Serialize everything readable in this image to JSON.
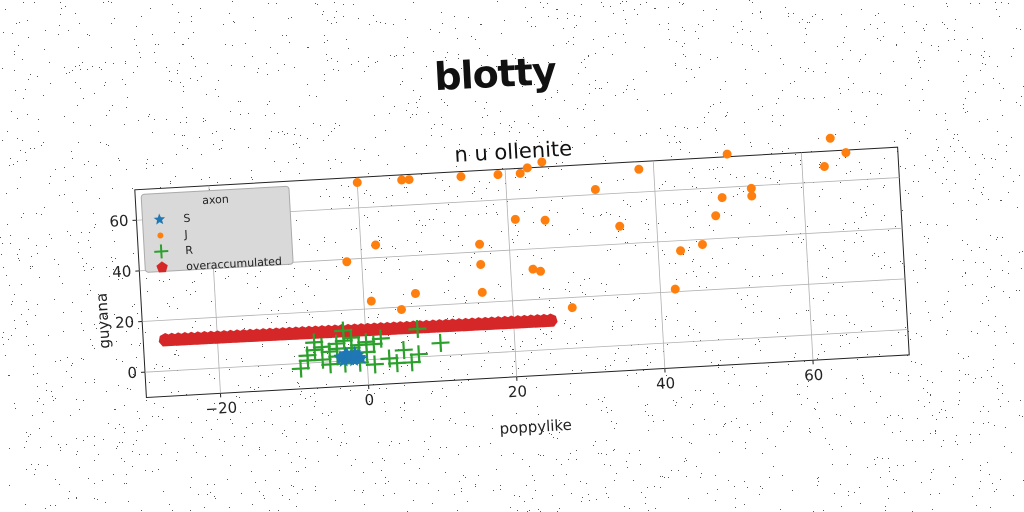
{
  "suptitle": "blotty",
  "chart_data": {
    "type": "scatter",
    "title": "n u ollenite",
    "xlabel": "poppylike",
    "ylabel": "guyana",
    "xlim": [
      -30,
      73
    ],
    "ylim": [
      -10,
      72
    ],
    "xticks": [
      -20,
      0,
      20,
      40,
      60
    ],
    "yticks": [
      0,
      20,
      40,
      60
    ],
    "grid": true,
    "legend": {
      "title": "axon",
      "placement": "top-left"
    },
    "colors": {
      "S": "#1f77b4",
      "J": "#ff7f0e",
      "R": "#2ca02c",
      "overaccumulated": "#d62728"
    },
    "series": [
      {
        "name": "S",
        "marker": "star",
        "points": [
          [
            -3.5,
            1
          ],
          [
            -3,
            2
          ],
          [
            -2.5,
            0.5
          ],
          [
            -2,
            1.5
          ],
          [
            -1.5,
            2.5
          ],
          [
            -1,
            1
          ],
          [
            -2.8,
            3
          ],
          [
            -1.8,
            0
          ],
          [
            -3.2,
            0
          ],
          [
            -1.2,
            2
          ],
          [
            -2.2,
            1.8
          ],
          [
            -0.8,
            0.5
          ],
          [
            -2.6,
            2.4
          ],
          [
            -1.6,
            3
          ],
          [
            -3.6,
            1.8
          ]
        ]
      },
      {
        "name": "J",
        "marker": "circle",
        "points": [
          [
            0,
            70
          ],
          [
            6,
            70
          ],
          [
            7,
            70
          ],
          [
            14,
            70
          ],
          [
            19,
            70
          ],
          [
            22,
            70
          ],
          [
            23,
            72
          ],
          [
            25,
            74
          ],
          [
            32,
            62
          ],
          [
            35,
            47
          ],
          [
            38,
            69
          ],
          [
            42,
            21
          ],
          [
            43,
            36
          ],
          [
            46,
            38
          ],
          [
            48,
            49
          ],
          [
            49,
            56
          ],
          [
            50,
            73
          ],
          [
            53,
            59
          ],
          [
            53,
            56
          ],
          [
            63,
            66
          ],
          [
            64,
            77
          ],
          [
            66,
            71
          ],
          [
            21,
            52
          ],
          [
            25,
            51
          ],
          [
            16,
            43
          ],
          [
            16,
            35
          ],
          [
            16,
            24
          ],
          [
            23,
            32
          ],
          [
            24,
            31
          ],
          [
            2,
            45
          ],
          [
            -2,
            39
          ],
          [
            1,
            23
          ],
          [
            5,
            19
          ],
          [
            7,
            25
          ],
          [
            28,
            16
          ]
        ]
      },
      {
        "name": "R",
        "marker": "plus",
        "points": [
          [
            -9,
            -2
          ],
          [
            -8,
            3
          ],
          [
            -7,
            5
          ],
          [
            -6,
            6
          ],
          [
            -5,
            4
          ],
          [
            -4,
            2
          ],
          [
            -3,
            8
          ],
          [
            -2,
            5
          ],
          [
            -1,
            -1
          ],
          [
            0,
            3
          ],
          [
            1,
            6
          ],
          [
            2,
            8
          ],
          [
            3,
            0
          ],
          [
            4,
            -2
          ],
          [
            5,
            3
          ],
          [
            6,
            -2
          ],
          [
            7,
            1
          ],
          [
            10,
            5
          ],
          [
            -6,
            1
          ],
          [
            -5,
            -1
          ],
          [
            -4,
            5
          ],
          [
            -3,
            -1
          ],
          [
            -2,
            9
          ],
          [
            -1,
            6
          ],
          [
            0,
            7
          ],
          [
            1,
            -2
          ],
          [
            -8,
            1
          ],
          [
            -7,
            8
          ],
          [
            -3,
            12
          ],
          [
            7,
            11
          ],
          [
            -4,
            7
          ],
          [
            -2,
            2
          ]
        ]
      },
      {
        "name": "overaccumulated",
        "marker": "pentagon",
        "line": {
          "x_from": -27,
          "x_to": 25,
          "y_from": 12.2,
          "y_to": 11.4,
          "count": 60
        }
      }
    ]
  }
}
